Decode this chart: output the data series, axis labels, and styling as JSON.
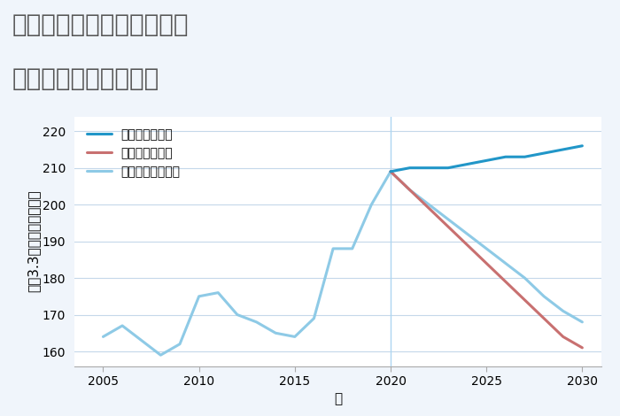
{
  "title_line1": "東京都板橋区大谷口北町の",
  "title_line2": "中古戸建ての価格推移",
  "xlabel": "年",
  "ylabel": "平（3.3㎡）単価（万円）",
  "background_color": "#f0f5fb",
  "plot_bg_color": "#ffffff",
  "grid_color": "#c5d8ea",
  "ylim": [
    156,
    224
  ],
  "yticks": [
    160,
    170,
    180,
    190,
    200,
    210,
    220
  ],
  "normal_scenario": {
    "years": [
      2005,
      2006,
      2007,
      2008,
      2009,
      2010,
      2011,
      2012,
      2013,
      2014,
      2015,
      2016,
      2017,
      2018,
      2019,
      2020,
      2021,
      2022,
      2023,
      2024,
      2025,
      2026,
      2027,
      2028,
      2029,
      2030
    ],
    "values": [
      164,
      167,
      163,
      159,
      162,
      175,
      176,
      170,
      168,
      165,
      164,
      169,
      188,
      188,
      200,
      209,
      204,
      200,
      196,
      192,
      188,
      184,
      180,
      175,
      171,
      168
    ],
    "color": "#8ecae6",
    "linewidth": 2.2,
    "label": "ノーマルシナリオ"
  },
  "good_scenario": {
    "years": [
      2020,
      2021,
      2022,
      2023,
      2024,
      2025,
      2026,
      2027,
      2028,
      2029,
      2030
    ],
    "values": [
      209,
      210,
      210,
      210,
      211,
      212,
      213,
      213,
      214,
      215,
      216
    ],
    "color": "#2196c8",
    "linewidth": 2.2,
    "label": "グッドシナリオ"
  },
  "bad_scenario": {
    "years": [
      2020,
      2021,
      2022,
      2023,
      2024,
      2025,
      2026,
      2027,
      2028,
      2029,
      2030
    ],
    "values": [
      209,
      204,
      199,
      194,
      189,
      184,
      179,
      174,
      169,
      164,
      161
    ],
    "color": "#c87070",
    "linewidth": 2.2,
    "label": "バッドシナリオ"
  },
  "vline_x": 2020,
  "vline_color": "#aed6f1",
  "title_color": "#555555",
  "title_fontsize": 20,
  "axis_fontsize": 11,
  "tick_fontsize": 10,
  "legend_fontsize": 10,
  "figsize": [
    7.0,
    4.7
  ],
  "dpi": 100
}
